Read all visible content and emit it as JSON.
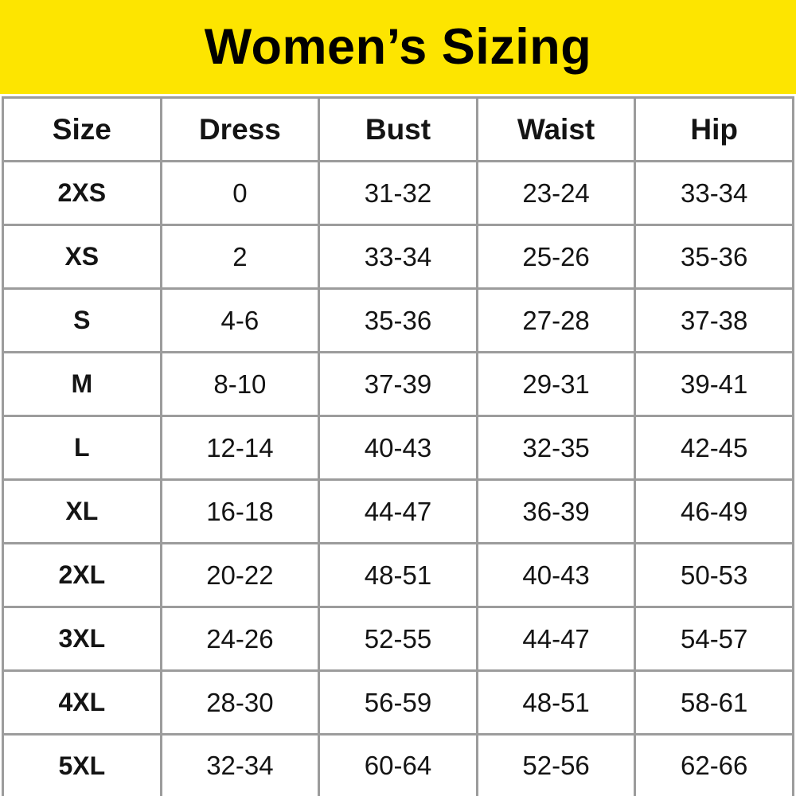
{
  "title": "Women’s Sizing",
  "colors": {
    "banner_yellow": "#fde500",
    "table_border_gray": "#9c9c9c",
    "text_black": "#141414",
    "background_white": "#ffffff"
  },
  "table": {
    "columns": [
      "Size",
      "Dress",
      "Bust",
      "Waist",
      "Hip"
    ],
    "rows": [
      [
        "2XS",
        "0",
        "31-32",
        "23-24",
        "33-34"
      ],
      [
        "XS",
        "2",
        "33-34",
        "25-26",
        "35-36"
      ],
      [
        "S",
        "4-6",
        "35-36",
        "27-28",
        "37-38"
      ],
      [
        "M",
        "8-10",
        "37-39",
        "29-31",
        "39-41"
      ],
      [
        "L",
        "12-14",
        "40-43",
        "32-35",
        "42-45"
      ],
      [
        "XL",
        "16-18",
        "44-47",
        "36-39",
        "46-49"
      ],
      [
        "2XL",
        "20-22",
        "48-51",
        "40-43",
        "50-53"
      ],
      [
        "3XL",
        "24-26",
        "52-55",
        "44-47",
        "54-57"
      ],
      [
        "4XL",
        "28-30",
        "56-59",
        "48-51",
        "58-61"
      ],
      [
        "5XL",
        "32-34",
        "60-64",
        "52-56",
        "62-66"
      ]
    ]
  },
  "chart_data": {
    "type": "table",
    "title": "Women’s Sizing",
    "columns": [
      "Size",
      "Dress",
      "Bust",
      "Waist",
      "Hip"
    ],
    "rows": [
      [
        "2XS",
        "0",
        "31-32",
        "23-24",
        "33-34"
      ],
      [
        "XS",
        "2",
        "33-34",
        "25-26",
        "35-36"
      ],
      [
        "S",
        "4-6",
        "35-36",
        "27-28",
        "37-38"
      ],
      [
        "M",
        "8-10",
        "37-39",
        "29-31",
        "39-41"
      ],
      [
        "L",
        "12-14",
        "40-43",
        "32-35",
        "42-45"
      ],
      [
        "XL",
        "16-18",
        "44-47",
        "36-39",
        "46-49"
      ],
      [
        "2XL",
        "20-22",
        "48-51",
        "40-43",
        "50-53"
      ],
      [
        "3XL",
        "24-26",
        "52-55",
        "44-47",
        "54-57"
      ],
      [
        "4XL",
        "28-30",
        "56-59",
        "48-51",
        "58-61"
      ],
      [
        "5XL",
        "32-34",
        "60-64",
        "52-56",
        "62-66"
      ]
    ]
  }
}
